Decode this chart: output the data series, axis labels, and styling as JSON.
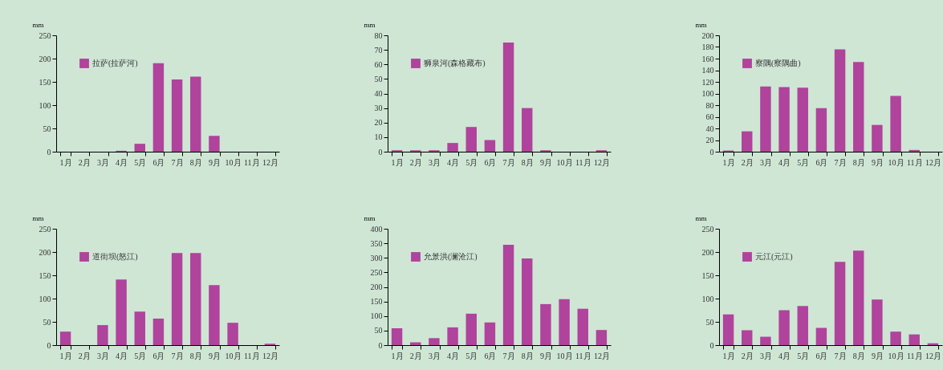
{
  "chart_data": [
    {
      "type": "bar",
      "ylabel": "mm",
      "categories": [
        "1月",
        "2月",
        "3月",
        "4月",
        "5月",
        "6月",
        "7月",
        "8月",
        "9月",
        "10月",
        "11月",
        "12月"
      ],
      "series": [
        {
          "name": "拉萨(拉萨河)",
          "color": "#b0439c",
          "values": [
            0,
            0,
            0,
            2,
            17,
            190,
            155,
            161,
            34,
            0,
            0,
            0
          ]
        }
      ],
      "ylim": [
        0,
        250
      ],
      "yticks": [
        0,
        50,
        100,
        150,
        200,
        250
      ],
      "legend": "top left",
      "grid": false
    },
    {
      "type": "bar",
      "ylabel": "mm",
      "categories": [
        "1月",
        "2月",
        "3月",
        "4月",
        "5月",
        "6月",
        "7月",
        "8月",
        "9月",
        "10月",
        "11月",
        "12月"
      ],
      "series": [
        {
          "name": "狮泉河(森格藏布)",
          "color": "#b0439c",
          "values": [
            1,
            1,
            1,
            6,
            17,
            8,
            75,
            30,
            1,
            0,
            0,
            1
          ]
        }
      ],
      "ylim": [
        0,
        80
      ],
      "yticks": [
        0,
        10,
        20,
        30,
        40,
        50,
        60,
        70,
        80
      ],
      "legend": "top left",
      "grid": false
    },
    {
      "type": "bar",
      "ylabel": "mm",
      "categories": [
        "1月",
        "2月",
        "3月",
        "4月",
        "5月",
        "6月",
        "7月",
        "8月",
        "9月",
        "10月",
        "11月",
        "12月"
      ],
      "series": [
        {
          "name": "察隅(察隅曲)",
          "color": "#b0439c",
          "values": [
            2,
            35,
            112,
            111,
            110,
            75,
            176,
            154,
            46,
            96,
            3,
            0
          ]
        }
      ],
      "ylim": [
        0,
        200
      ],
      "yticks": [
        0,
        20,
        40,
        60,
        80,
        100,
        120,
        140,
        160,
        180,
        200
      ],
      "legend": "top left",
      "grid": false
    },
    {
      "type": "bar",
      "ylabel": "mm",
      "categories": [
        "1月",
        "2月",
        "3月",
        "4月",
        "5月",
        "6月",
        "7月",
        "8月",
        "9月",
        "10月",
        "11月",
        "12月"
      ],
      "series": [
        {
          "name": "道街坝(怒江)",
          "color": "#b0439c",
          "values": [
            29,
            0,
            43,
            141,
            72,
            57,
            198,
            198,
            129,
            48,
            0,
            3
          ]
        }
      ],
      "ylim": [
        0,
        250
      ],
      "yticks": [
        0,
        50,
        100,
        150,
        200,
        250
      ],
      "legend": "top left",
      "grid": false
    },
    {
      "type": "bar",
      "ylabel": "mm",
      "categories": [
        "1月",
        "2月",
        "3月",
        "4月",
        "5月",
        "6月",
        "7月",
        "8月",
        "9月",
        "10月",
        "11月",
        "12月"
      ],
      "series": [
        {
          "name": "允景洪(澜沧江)",
          "color": "#b0439c",
          "values": [
            58,
            10,
            24,
            61,
            108,
            78,
            345,
            298,
            141,
            158,
            125,
            52
          ]
        }
      ],
      "ylim": [
        0,
        400
      ],
      "yticks": [
        0,
        50,
        100,
        150,
        200,
        250,
        300,
        350,
        400
      ],
      "legend": "top left",
      "grid": false
    },
    {
      "type": "bar",
      "ylabel": "mm",
      "categories": [
        "1月",
        "2月",
        "3月",
        "4月",
        "5月",
        "6月",
        "7月",
        "8月",
        "9月",
        "10月",
        "11月",
        "12月"
      ],
      "series": [
        {
          "name": "元江(元江)",
          "color": "#b0439c",
          "values": [
            66,
            32,
            18,
            75,
            84,
            37,
            179,
            203,
            98,
            29,
            23,
            4
          ]
        }
      ],
      "ylim": [
        0,
        250
      ],
      "yticks": [
        0,
        50,
        100,
        150,
        200,
        250
      ],
      "legend": "top left",
      "grid": false
    }
  ]
}
